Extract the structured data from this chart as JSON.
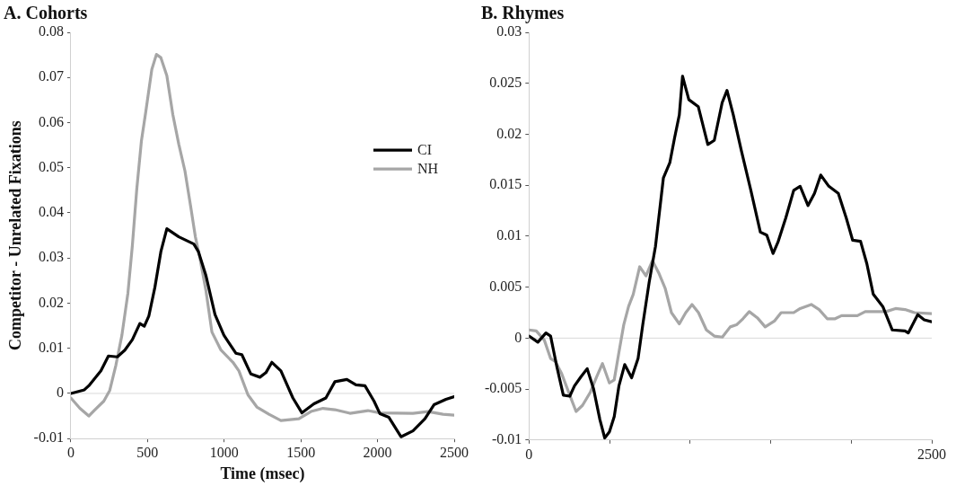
{
  "chart_data": [
    {
      "type": "line",
      "title": "A. Cohorts",
      "xlabel": "Time (msec)",
      "ylabel": "Competitor - Unrelated Fixations",
      "xlim": [
        0,
        2500
      ],
      "xticks": [
        0,
        500,
        1000,
        1500,
        2000,
        2500
      ],
      "ylim": [
        -0.01,
        0.08
      ],
      "yticks": [
        -0.01,
        0,
        0.01,
        0.02,
        0.03,
        0.04,
        0.05,
        0.06,
        0.07,
        0.08
      ],
      "grid": false,
      "legend": "right",
      "marker": "none",
      "line_style": "solid",
      "ref_lines": [
        {
          "axis": "y",
          "value": 0,
          "color": "#d9d9d9"
        }
      ],
      "series": [
        {
          "name": "CI",
          "color": "#000000",
          "x": [
            0,
            88,
            117,
            196,
            245,
            303,
            352,
            401,
            450,
            479,
            509,
            548,
            587,
            626,
            704,
            802,
            832,
            881,
            940,
            998,
            1076,
            1115,
            1174,
            1233,
            1272,
            1311,
            1370,
            1448,
            1507,
            1585,
            1663,
            1722,
            1800,
            1859,
            1918,
            1977,
            2016,
            2074,
            2153,
            2231,
            2309,
            2368,
            2446,
            2500
          ],
          "values": [
            0,
            0.0008,
            0.0017,
            0.005,
            0.0083,
            0.0081,
            0.0096,
            0.0119,
            0.0155,
            0.0149,
            0.0172,
            0.0235,
            0.0314,
            0.0365,
            0.0347,
            0.0331,
            0.0314,
            0.0261,
            0.0175,
            0.0129,
            0.0089,
            0.0086,
            0.0043,
            0.0036,
            0.0046,
            0.0069,
            0.005,
            -0.001,
            -0.0043,
            -0.0023,
            -0.001,
            0.0026,
            0.0031,
            0.0019,
            0.0017,
            -0.0017,
            -0.0045,
            -0.0053,
            -0.0096,
            -0.0083,
            -0.0056,
            -0.0025,
            -0.0013,
            -0.0007
          ]
        },
        {
          "name": "NH",
          "color": "#a6a6a6",
          "x": [
            0,
            59,
            117,
            157,
            215,
            254,
            294,
            333,
            372,
            401,
            430,
            460,
            489,
            528,
            558,
            587,
            626,
            665,
            704,
            744,
            782,
            812,
            841,
            881,
            920,
            979,
            1057,
            1096,
            1155,
            1213,
            1292,
            1370,
            1487,
            1566,
            1644,
            1722,
            1820,
            1937,
            2016,
            2231,
            2329,
            2427,
            2500
          ],
          "values": [
            -0.001,
            -0.0033,
            -0.005,
            -0.0036,
            -0.0017,
            0.0007,
            0.0063,
            0.0129,
            0.0222,
            0.0327,
            0.0453,
            0.0559,
            0.0625,
            0.0718,
            0.0751,
            0.0744,
            0.0704,
            0.0618,
            0.0552,
            0.0493,
            0.0413,
            0.0347,
            0.0301,
            0.0228,
            0.0136,
            0.0096,
            0.0069,
            0.005,
            -0.0003,
            -0.003,
            -0.0046,
            -0.006,
            -0.0056,
            -0.004,
            -0.0033,
            -0.0036,
            -0.0044,
            -0.0038,
            -0.0043,
            -0.0044,
            -0.004,
            -0.0046,
            -0.0048
          ]
        }
      ]
    },
    {
      "type": "line",
      "title": "B. Rhymes",
      "xlim": [
        0,
        2500
      ],
      "xticks": [
        0,
        {
          "value": 500,
          "label": null
        },
        {
          "value": 1000,
          "label": null
        },
        {
          "value": 1500,
          "label": null
        },
        {
          "value": 2000,
          "label": null
        },
        2500
      ],
      "ylim": [
        -0.01,
        0.03
      ],
      "yticks": [
        -0.01,
        -0.005,
        0,
        0.005,
        0.01,
        0.015,
        0.02,
        0.025,
        0.03
      ],
      "grid": false,
      "marker": "none",
      "line_style": "solid",
      "ref_lines": [
        {
          "axis": "y",
          "value": 0,
          "color": "#d9d9d9"
        }
      ],
      "series": [
        {
          "color": "#000000",
          "x": [
            0,
            55,
            105,
            134,
            174,
            213,
            253,
            282,
            322,
            361,
            401,
            440,
            470,
            499,
            529,
            558,
            594,
            637,
            677,
            706,
            746,
            785,
            834,
            874,
            903,
            933,
            953,
            992,
            1051,
            1110,
            1150,
            1199,
            1229,
            1268,
            1318,
            1377,
            1436,
            1476,
            1515,
            1545,
            1594,
            1643,
            1683,
            1732,
            1772,
            1811,
            1861,
            1920,
            1969,
            2009,
            2058,
            2097,
            2137,
            2196,
            2255,
            2334,
            2354,
            2413,
            2453,
            2500
          ],
          "values": [
            0.0002,
            -0.0004,
            0.0005,
            0.0002,
            -0.0029,
            -0.0056,
            -0.0057,
            -0.0047,
            -0.0038,
            -0.003,
            -0.005,
            -0.008,
            -0.0098,
            -0.0092,
            -0.0077,
            -0.0047,
            -0.0026,
            -0.0039,
            -0.002,
            0.0013,
            0.0055,
            0.009,
            0.0157,
            0.0172,
            0.0196,
            0.0219,
            0.0257,
            0.0234,
            0.0227,
            0.019,
            0.0194,
            0.0231,
            0.0243,
            0.0219,
            0.0184,
            0.0145,
            0.0104,
            0.0101,
            0.0083,
            0.0094,
            0.0118,
            0.0145,
            0.0149,
            0.013,
            0.0142,
            0.016,
            0.0149,
            0.0142,
            0.0118,
            0.0096,
            0.0095,
            0.0073,
            0.0043,
            0.0031,
            0.0008,
            0.0007,
            0.0005,
            0.0023,
            0.0018,
            0.0016
          ]
        },
        {
          "color": "#a6a6a6",
          "x": [
            0,
            45,
            95,
            134,
            164,
            203,
            253,
            292,
            332,
            381,
            420,
            456,
            499,
            529,
            558,
            588,
            618,
            647,
            687,
            726,
            766,
            805,
            845,
            884,
            933,
            973,
            1012,
            1052,
            1101,
            1150,
            1200,
            1249,
            1288,
            1328,
            1367,
            1417,
            1466,
            1525,
            1565,
            1643,
            1683,
            1752,
            1801,
            1851,
            1900,
            1940,
            2038,
            2087,
            2216,
            2275,
            2334,
            2393,
            2500
          ],
          "values": [
            0.0008,
            0.0007,
            -0.0002,
            -0.002,
            -0.0023,
            -0.0035,
            -0.0056,
            -0.0072,
            -0.0066,
            -0.0053,
            -0.0038,
            -0.0025,
            -0.0044,
            -0.0041,
            -0.0014,
            0.0013,
            0.0031,
            0.0043,
            0.007,
            0.0061,
            0.0076,
            0.0064,
            0.0049,
            0.0025,
            0.0014,
            0.0025,
            0.0033,
            0.0025,
            0.0008,
            0.0002,
            0.0001,
            0.0011,
            0.0013,
            0.0019,
            0.0026,
            0.002,
            0.0011,
            0.0017,
            0.0025,
            0.0025,
            0.0029,
            0.0033,
            0.0028,
            0.0019,
            0.0019,
            0.0022,
            0.0022,
            0.0026,
            0.0026,
            0.0029,
            0.0028,
            0.0025,
            0.0024
          ]
        }
      ]
    }
  ]
}
